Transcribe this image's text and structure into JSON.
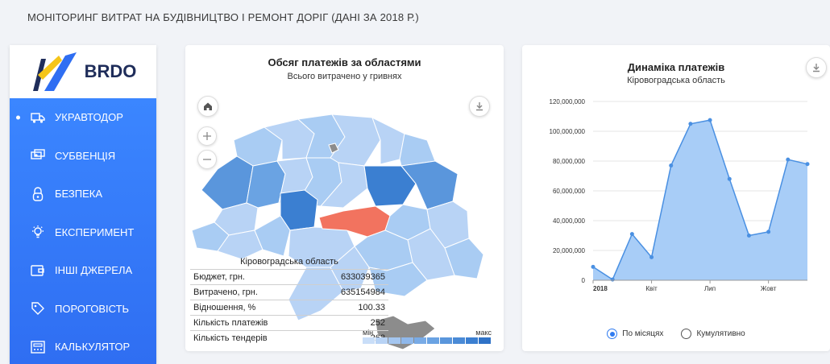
{
  "page": {
    "title": "МОНІТОРИНГ ВИТРАТ НА БУДІВНИЦТВО І РЕМОНТ ДОРІГ (ДАНІ ЗА 2018 Р.)"
  },
  "logo": {
    "text": "BRDO"
  },
  "sidebar": {
    "items": [
      {
        "label": "УКРАВТОДОР",
        "icon": "truck-icon",
        "active": true
      },
      {
        "label": "СУБВЕНЦІЯ",
        "icon": "money-icon"
      },
      {
        "label": "БЕЗПЕКА",
        "icon": "lock-icon"
      },
      {
        "label": "ЕКСПЕРИМЕНТ",
        "icon": "bulb-icon"
      },
      {
        "label": "ІНШІ ДЖЕРЕЛА",
        "icon": "wallet-icon"
      },
      {
        "label": "ПОРОГОВІСТЬ",
        "icon": "tag-icon"
      },
      {
        "label": "КАЛЬКУЛЯТОР",
        "icon": "calculator-icon"
      }
    ]
  },
  "map_card": {
    "title": "Обсяг платежів за областями",
    "subtitle": "Всього витрачено у гривнях",
    "tooltip": {
      "region": "Кіровоградська область",
      "rows": [
        {
          "label": "Бюджет, грн.",
          "value": "633039365"
        },
        {
          "label": "Витрачено, грн.",
          "value": "635154984"
        },
        {
          "label": "Відношення, %",
          "value": "100.33"
        },
        {
          "label": "Кількість платежів",
          "value": "252"
        },
        {
          "label": "Кількість тендерів",
          "value": "262"
        }
      ]
    },
    "legend": {
      "min": "мін",
      "max": "макс"
    },
    "colors": {
      "highlight": "#f2735f",
      "dark": "#3b7fd1",
      "mid": "#79abe6",
      "light": "#b8d3f5",
      "crimea": "#8c8c8c"
    }
  },
  "line_card": {
    "title": "Динаміка платежів",
    "subtitle": "Кіровоградська область",
    "radios": [
      {
        "label": "По місяцях",
        "checked": true
      },
      {
        "label": "Кумулятивно",
        "checked": false
      }
    ]
  },
  "chart_data": {
    "type": "area",
    "title": "Динаміка платежів",
    "subtitle": "Кіровоградська область",
    "x": [
      "2018-01",
      "2018-02",
      "2018-03",
      "2018-04",
      "2018-05",
      "2018-06",
      "2018-07",
      "2018-08",
      "2018-09",
      "2018-10",
      "2018-11",
      "2018-12"
    ],
    "x_tick_labels": [
      {
        "x": "2018-01",
        "label": "2018"
      },
      {
        "x": "2018-04",
        "label": "Квіт"
      },
      {
        "x": "2018-07",
        "label": "Лип"
      },
      {
        "x": "2018-10",
        "label": "Жовт"
      }
    ],
    "series": [
      {
        "values": [
          9000000,
          500000,
          31000000,
          15500000,
          77000000,
          105000000,
          107500000,
          68000000,
          30000000,
          32500000,
          81000000,
          78000000
        ]
      }
    ],
    "ylim": [
      0,
      120000000
    ],
    "y_ticks": [
      "0",
      "20,000,000",
      "40,000,000",
      "60,000,000",
      "80,000,000",
      "100,000,000",
      "120,000,000"
    ],
    "grid": true,
    "color": "#4a90e2",
    "fill": "#a8cdf7"
  }
}
